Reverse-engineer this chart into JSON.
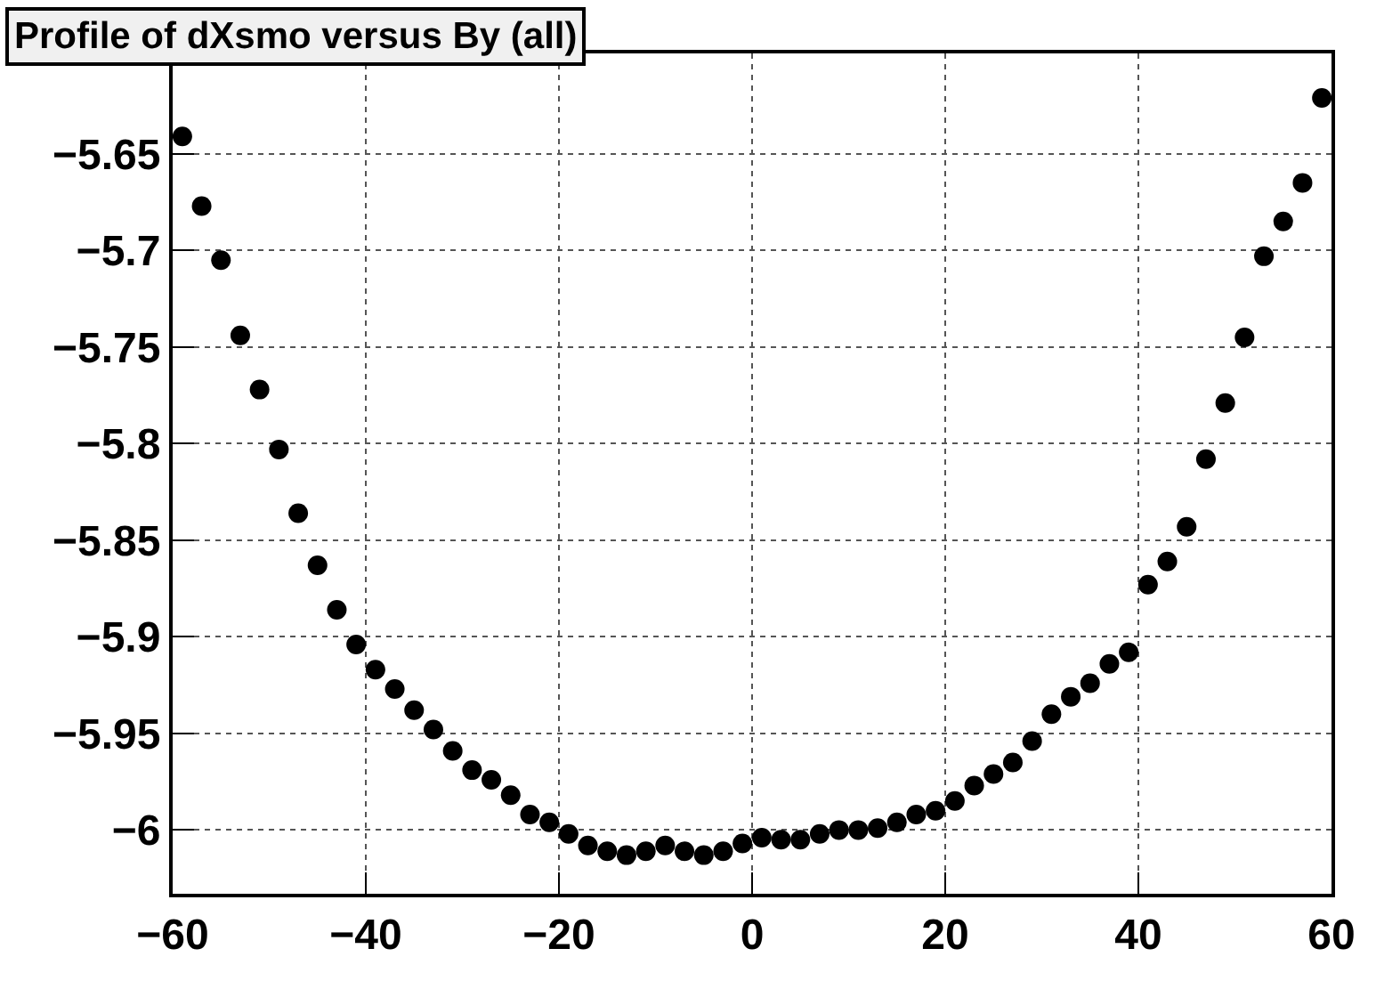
{
  "chart_data": {
    "type": "scatter",
    "title": "Profile of dXsmo versus By (all)",
    "x": [
      -59,
      -57,
      -55,
      -53,
      -51,
      -49,
      -47,
      -45,
      -43,
      -41,
      -39,
      -37,
      -35,
      -33,
      -31,
      -29,
      -27,
      -25,
      -23,
      -21,
      -19,
      -17,
      -15,
      -13,
      -11,
      -9,
      -7,
      -5,
      -3,
      -1,
      1,
      3,
      5,
      7,
      9,
      11,
      13,
      15,
      17,
      19,
      21,
      23,
      25,
      27,
      29,
      31,
      33,
      35,
      37,
      39,
      41,
      43,
      45,
      47,
      49,
      51,
      53,
      55,
      57,
      59
    ],
    "series": [
      {
        "color": "#000000",
        "values": [
          -5.641,
          -5.677,
          -5.705,
          -5.744,
          -5.772,
          -5.803,
          -5.836,
          -5.863,
          -5.886,
          -5.904,
          -5.917,
          -5.927,
          -5.938,
          -5.948,
          -5.959,
          -5.969,
          -5.974,
          -5.982,
          -5.992,
          -5.996,
          -6.002,
          -6.008,
          -6.011,
          -6.013,
          -6.011,
          -6.008,
          -6.011,
          -6.013,
          -6.011,
          -6.007,
          -6.004,
          -6.005,
          -6.005,
          -6.002,
          -6.0,
          -6.0,
          -5.999,
          -5.996,
          -5.992,
          -5.99,
          -5.985,
          -5.977,
          -5.971,
          -5.965,
          -5.954,
          -5.94,
          -5.931,
          -5.924,
          -5.914,
          -5.908,
          -5.873,
          -5.861,
          -5.843,
          -5.808,
          -5.779,
          -5.745,
          -5.703,
          -5.685,
          -5.665,
          -5.621
        ]
      }
    ],
    "xlim": [
      -60,
      60
    ],
    "ylim": [
      -6.033,
      -5.598
    ],
    "xticks": [
      {
        "value": -60,
        "label": "−60"
      },
      {
        "value": -40,
        "label": "−40"
      },
      {
        "value": -20,
        "label": "−20"
      },
      0,
      20,
      40,
      60
    ],
    "yticks": [
      {
        "value": -5.65,
        "label": "−5.65"
      },
      {
        "value": -5.7,
        "label": "−5.7"
      },
      {
        "value": -5.75,
        "label": "−5.75"
      },
      {
        "value": -5.8,
        "label": "−5.8"
      },
      {
        "value": -5.85,
        "label": "−5.85"
      },
      {
        "value": -5.9,
        "label": "−5.9"
      },
      {
        "value": -5.95,
        "label": "−5.95"
      },
      {
        "value": -6,
        "label": "−6"
      }
    ],
    "grid": true,
    "marker": "circle"
  }
}
